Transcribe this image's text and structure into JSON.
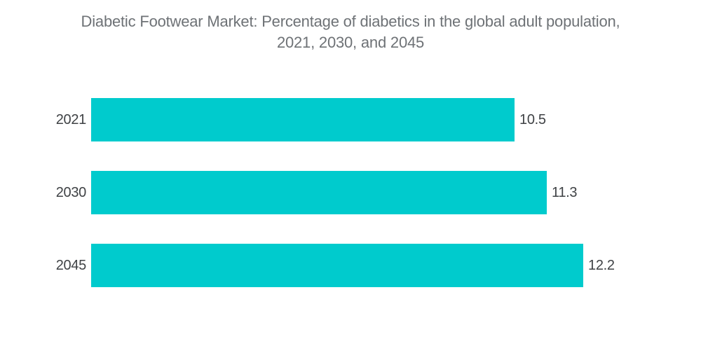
{
  "title_lines": [
    "Diabetic Footwear Market: Percentage of diabetics in the global adult population,",
    "2021, 2030, and 2045"
  ],
  "colors": {
    "bar": "#00cbcd",
    "title_text": "#6e7276",
    "label_text": "#3f4245",
    "background": "#ffffff"
  },
  "chart_data": {
    "type": "bar",
    "orientation": "horizontal",
    "title": "Diabetic Footwear Market: Percentage of diabetics in the global adult population, 2021, 2030, and 2045",
    "categories": [
      "2021",
      "2030",
      "2045"
    ],
    "values": [
      10.5,
      11.3,
      12.2
    ],
    "value_labels": [
      "10.5",
      "11.3",
      "12.2"
    ],
    "xlabel": "",
    "ylabel": "",
    "xlim": [
      0,
      12.2
    ],
    "grid": false,
    "legend": false,
    "axis_visible": false,
    "bar_color": "#00cbcd",
    "value_label_position": "right-of-bar",
    "category_label_position": "left-of-bar"
  }
}
